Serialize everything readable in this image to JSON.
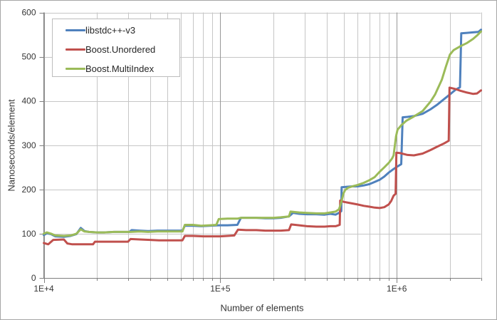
{
  "chart_data": {
    "type": "line",
    "title": "",
    "xlabel": "Number of elements",
    "ylabel": "Nanoseconds/element",
    "x_scale": "log",
    "xlim": [
      10000,
      3000000
    ],
    "ylim": [
      0,
      600
    ],
    "grid": true,
    "legend_position": "top-left",
    "y_major_ticks": [
      0,
      100,
      200,
      300,
      400,
      500,
      600
    ],
    "x_major_ticks": [
      10000,
      100000,
      1000000
    ],
    "x_major_tick_labels": [
      "1E+4",
      "1E+5",
      "1E+6"
    ],
    "x_minor_ticks": [
      20000,
      30000,
      40000,
      50000,
      60000,
      70000,
      80000,
      90000,
      200000,
      300000,
      400000,
      500000,
      600000,
      700000,
      800000,
      900000,
      2000000,
      3000000
    ],
    "series": [
      {
        "name": "libstdc++-v3",
        "color": "#4F81BD",
        "points": [
          [
            10000,
            97
          ],
          [
            10400,
            101
          ],
          [
            11000,
            99
          ],
          [
            11600,
            94
          ],
          [
            13000,
            93
          ],
          [
            14200,
            95
          ],
          [
            15300,
            99
          ],
          [
            16200,
            113
          ],
          [
            17000,
            106
          ],
          [
            18000,
            104
          ],
          [
            20000,
            103
          ],
          [
            22000,
            103
          ],
          [
            25000,
            104
          ],
          [
            28000,
            104
          ],
          [
            30500,
            104
          ],
          [
            31500,
            108
          ],
          [
            35000,
            107
          ],
          [
            39000,
            106
          ],
          [
            44000,
            107
          ],
          [
            49000,
            107
          ],
          [
            55000,
            107
          ],
          [
            61000,
            107
          ],
          [
            63000,
            118
          ],
          [
            70000,
            118
          ],
          [
            78000,
            117
          ],
          [
            87000,
            118
          ],
          [
            98000,
            119
          ],
          [
            110000,
            119
          ],
          [
            125000,
            120
          ],
          [
            131000,
            136
          ],
          [
            145000,
            136
          ],
          [
            160000,
            136
          ],
          [
            180000,
            135
          ],
          [
            200000,
            135
          ],
          [
            220000,
            136
          ],
          [
            245000,
            139
          ],
          [
            258000,
            147
          ],
          [
            280000,
            145
          ],
          [
            310000,
            144
          ],
          [
            350000,
            144
          ],
          [
            390000,
            143
          ],
          [
            420000,
            145
          ],
          [
            450000,
            143
          ],
          [
            470000,
            147
          ],
          [
            485000,
            151
          ],
          [
            487000,
            205
          ],
          [
            520000,
            206
          ],
          [
            560000,
            207
          ],
          [
            600000,
            207
          ],
          [
            650000,
            209
          ],
          [
            700000,
            212
          ],
          [
            750000,
            217
          ],
          [
            800000,
            222
          ],
          [
            850000,
            229
          ],
          [
            900000,
            238
          ],
          [
            950000,
            245
          ],
          [
            1000000,
            251
          ],
          [
            1060000,
            257
          ],
          [
            1080000,
            363
          ],
          [
            1150000,
            364
          ],
          [
            1250000,
            366
          ],
          [
            1400000,
            371
          ],
          [
            1550000,
            381
          ],
          [
            1700000,
            392
          ],
          [
            1850000,
            404
          ],
          [
            2000000,
            415
          ],
          [
            2150000,
            425
          ],
          [
            2280000,
            431
          ],
          [
            2320000,
            553
          ],
          [
            2500000,
            554
          ],
          [
            2700000,
            555
          ],
          [
            2900000,
            556
          ],
          [
            3000000,
            561
          ]
        ]
      },
      {
        "name": "Boost.Unordered",
        "color": "#C0504D",
        "points": [
          [
            10000,
            79
          ],
          [
            10600,
            76
          ],
          [
            11300,
            86
          ],
          [
            13000,
            87
          ],
          [
            13600,
            78
          ],
          [
            14500,
            76
          ],
          [
            17000,
            76
          ],
          [
            19000,
            76
          ],
          [
            19500,
            82
          ],
          [
            22000,
            82
          ],
          [
            25000,
            82
          ],
          [
            30000,
            82
          ],
          [
            31000,
            88
          ],
          [
            35000,
            87
          ],
          [
            40000,
            86
          ],
          [
            45000,
            85
          ],
          [
            50000,
            85
          ],
          [
            55000,
            85
          ],
          [
            61000,
            85
          ],
          [
            63000,
            95
          ],
          [
            70000,
            95
          ],
          [
            80000,
            94
          ],
          [
            90000,
            94
          ],
          [
            100000,
            94
          ],
          [
            110000,
            95
          ],
          [
            120000,
            96
          ],
          [
            126000,
            109
          ],
          [
            140000,
            108
          ],
          [
            160000,
            108
          ],
          [
            180000,
            107
          ],
          [
            200000,
            107
          ],
          [
            220000,
            107
          ],
          [
            245000,
            108
          ],
          [
            252000,
            121
          ],
          [
            280000,
            119
          ],
          [
            310000,
            117
          ],
          [
            350000,
            116
          ],
          [
            390000,
            116
          ],
          [
            420000,
            117
          ],
          [
            450000,
            117
          ],
          [
            475000,
            120
          ],
          [
            478000,
            175
          ],
          [
            500000,
            172
          ],
          [
            550000,
            169
          ],
          [
            600000,
            166
          ],
          [
            650000,
            163
          ],
          [
            700000,
            161
          ],
          [
            750000,
            159
          ],
          [
            800000,
            158
          ],
          [
            850000,
            160
          ],
          [
            900000,
            166
          ],
          [
            930000,
            174
          ],
          [
            960000,
            186
          ],
          [
            985000,
            190
          ],
          [
            995000,
            283
          ],
          [
            1050000,
            282
          ],
          [
            1150000,
            278
          ],
          [
            1250000,
            277
          ],
          [
            1400000,
            281
          ],
          [
            1550000,
            289
          ],
          [
            1700000,
            297
          ],
          [
            1850000,
            304
          ],
          [
            1970000,
            310
          ],
          [
            1990000,
            430
          ],
          [
            2150000,
            427
          ],
          [
            2300000,
            423
          ],
          [
            2500000,
            419
          ],
          [
            2700000,
            416
          ],
          [
            2850000,
            417
          ],
          [
            3000000,
            424
          ]
        ]
      },
      {
        "name": "Boost.MultiIndex",
        "color": "#9BBB59",
        "points": [
          [
            10000,
            100
          ],
          [
            10400,
            103
          ],
          [
            11000,
            100
          ],
          [
            11600,
            96
          ],
          [
            13000,
            95
          ],
          [
            14200,
            96
          ],
          [
            15300,
            100
          ],
          [
            16200,
            110
          ],
          [
            17000,
            105
          ],
          [
            18000,
            104
          ],
          [
            20000,
            103
          ],
          [
            22000,
            103
          ],
          [
            25000,
            104
          ],
          [
            28000,
            104
          ],
          [
            31000,
            104
          ],
          [
            35000,
            105
          ],
          [
            39000,
            104
          ],
          [
            44000,
            105
          ],
          [
            49000,
            105
          ],
          [
            55000,
            105
          ],
          [
            61000,
            105
          ],
          [
            63000,
            120
          ],
          [
            70000,
            120
          ],
          [
            78000,
            118
          ],
          [
            87000,
            119
          ],
          [
            95000,
            120
          ],
          [
            98000,
            133
          ],
          [
            110000,
            134
          ],
          [
            125000,
            134
          ],
          [
            131000,
            136
          ],
          [
            145000,
            136
          ],
          [
            160000,
            136
          ],
          [
            180000,
            136
          ],
          [
            200000,
            136
          ],
          [
            220000,
            137
          ],
          [
            245000,
            139
          ],
          [
            250000,
            150
          ],
          [
            280000,
            148
          ],
          [
            310000,
            147
          ],
          [
            350000,
            146
          ],
          [
            390000,
            146
          ],
          [
            420000,
            148
          ],
          [
            450000,
            150
          ],
          [
            470000,
            155
          ],
          [
            480000,
            165
          ],
          [
            490000,
            178
          ],
          [
            500000,
            192
          ],
          [
            510000,
            199
          ],
          [
            530000,
            204
          ],
          [
            560000,
            207
          ],
          [
            600000,
            210
          ],
          [
            650000,
            215
          ],
          [
            700000,
            221
          ],
          [
            750000,
            228
          ],
          [
            800000,
            240
          ],
          [
            850000,
            250
          ],
          [
            900000,
            260
          ],
          [
            940000,
            270
          ],
          [
            960000,
            277
          ],
          [
            990000,
            320
          ],
          [
            1010000,
            335
          ],
          [
            1060000,
            345
          ],
          [
            1130000,
            355
          ],
          [
            1250000,
            365
          ],
          [
            1400000,
            377
          ],
          [
            1550000,
            398
          ],
          [
            1650000,
            415
          ],
          [
            1800000,
            448
          ],
          [
            1900000,
            478
          ],
          [
            2000000,
            505
          ],
          [
            2100000,
            515
          ],
          [
            2300000,
            524
          ],
          [
            2500000,
            531
          ],
          [
            2700000,
            540
          ],
          [
            2850000,
            548
          ],
          [
            3000000,
            557
          ]
        ]
      }
    ]
  },
  "legend": {
    "items": [
      {
        "label": "libstdc++-v3",
        "color": "#4F81BD"
      },
      {
        "label": "Boost.Unordered",
        "color": "#C0504D"
      },
      {
        "label": "Boost.MultiIndex",
        "color": "#9BBB59"
      }
    ]
  },
  "colors": {
    "gridline_minor": "#c6c6c6",
    "gridline_major": "#979797",
    "axis_line": "#7f7f7f",
    "text": "#363636"
  }
}
